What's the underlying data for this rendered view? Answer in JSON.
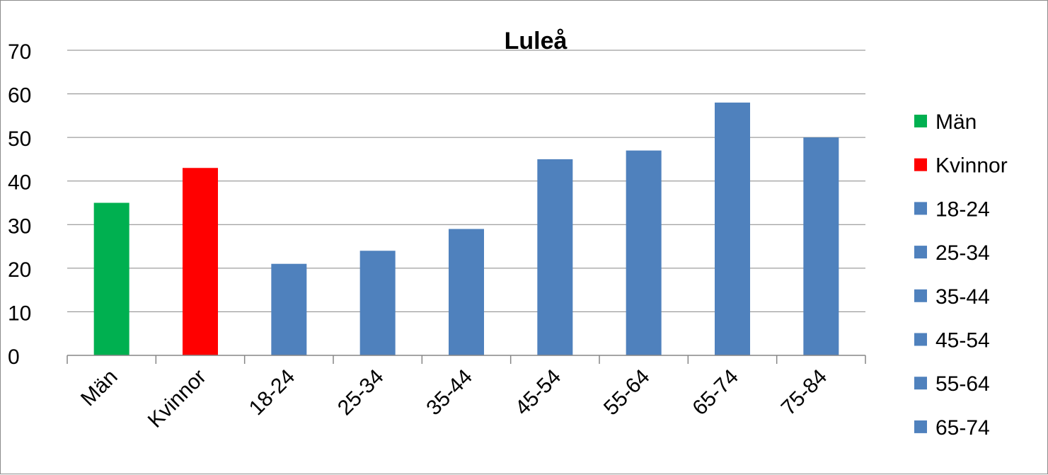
{
  "chart_data": {
    "type": "bar",
    "title": "Luleå",
    "xlabel": "",
    "ylabel": "",
    "ylim": [
      0,
      70
    ],
    "yticks": [
      0,
      10,
      20,
      30,
      40,
      50,
      60,
      70
    ],
    "grid": true,
    "legend_position": "right",
    "categories": [
      "Män",
      "Kvinnor",
      "18-24",
      "25-34",
      "35-44",
      "45-54",
      "55-64",
      "65-74",
      "75-84"
    ],
    "values": [
      35,
      43,
      21,
      24,
      29,
      45,
      47,
      58,
      50
    ],
    "bar_colors": [
      "#00b050",
      "#ff0000",
      "#4f81bd",
      "#4f81bd",
      "#4f81bd",
      "#4f81bd",
      "#4f81bd",
      "#4f81bd",
      "#4f81bd"
    ],
    "legend": [
      {
        "label": "Män",
        "color": "#00b050"
      },
      {
        "label": "Kvinnor",
        "color": "#ff0000"
      },
      {
        "label": "18-24",
        "color": "#4f81bd"
      },
      {
        "label": "25-34",
        "color": "#4f81bd"
      },
      {
        "label": "35-44",
        "color": "#4f81bd"
      },
      {
        "label": "45-54",
        "color": "#4f81bd"
      },
      {
        "label": "55-64",
        "color": "#4f81bd"
      },
      {
        "label": "65-74",
        "color": "#4f81bd"
      }
    ],
    "colors": {
      "grid": "#868686",
      "axis": "#868686"
    }
  }
}
